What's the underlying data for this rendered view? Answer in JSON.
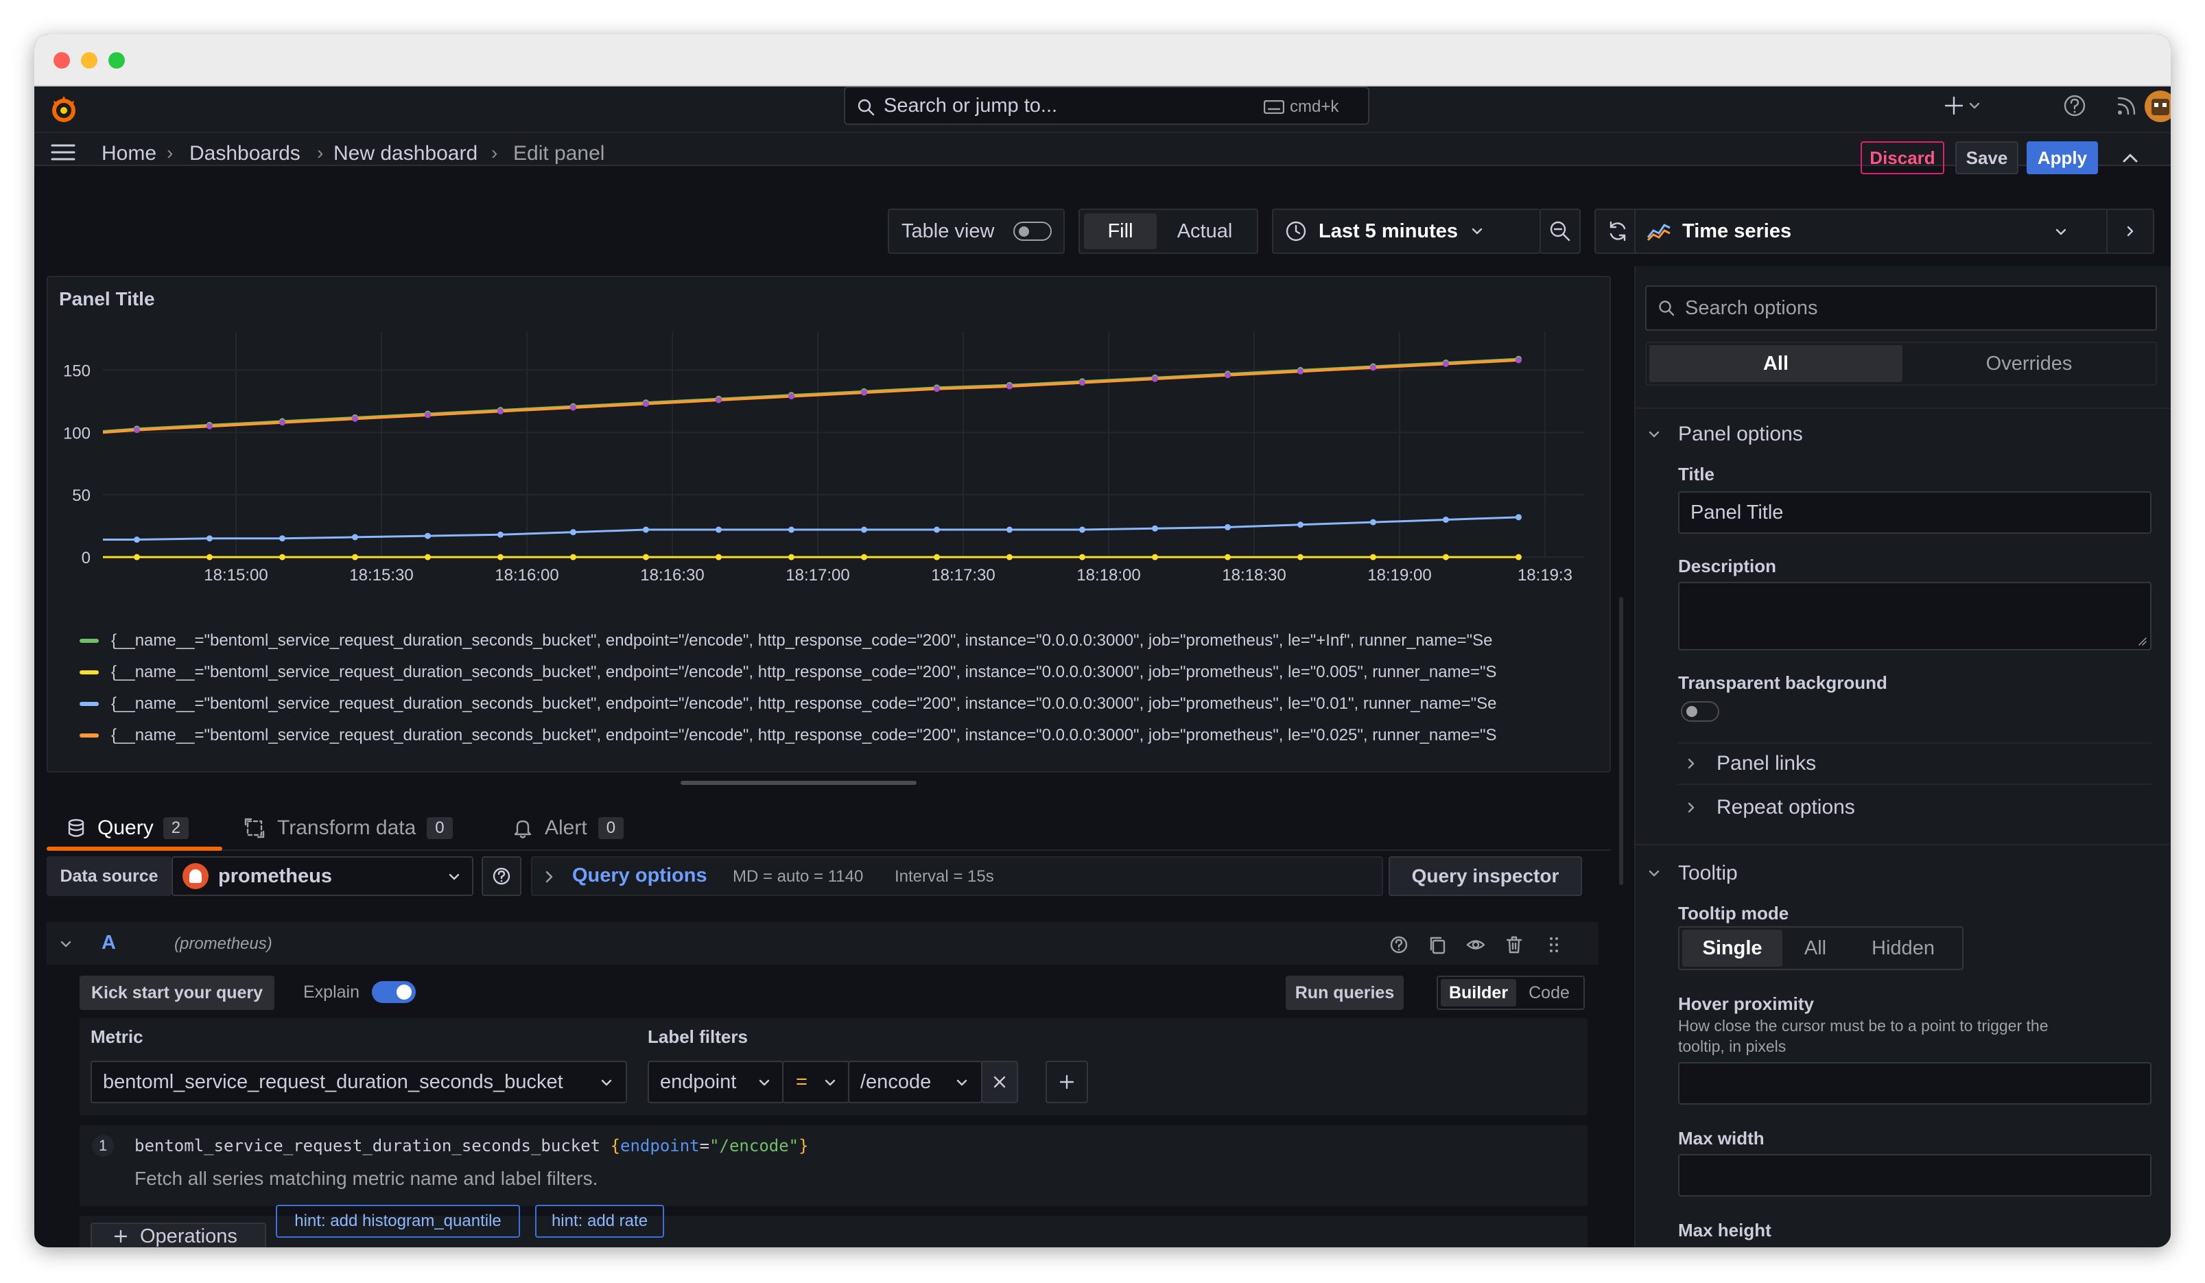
{
  "search": {
    "placeholder": "Search or jump to...",
    "shortcut": "cmd+k"
  },
  "breadcrumb": [
    "Home",
    "Dashboards",
    "New dashboard",
    "Edit panel"
  ],
  "header_actions": {
    "discard": "Discard",
    "save": "Save",
    "apply": "Apply"
  },
  "toolbar": {
    "table_view": "Table view",
    "fill": "Fill",
    "actual": "Actual",
    "time_range": "Last 5 minutes",
    "visualization": "Time series"
  },
  "panel": {
    "title": "Panel Title",
    "legend": [
      {
        "text": "{__name__=\"bentoml_service_request_duration_seconds_bucket\", endpoint=\"/encode\", http_response_code=\"200\", instance=\"0.0.0.0:3000\", job=\"prometheus\", le=\"+Inf\", runner_name=\"Se",
        "color": "#73bf69"
      },
      {
        "text": "{__name__=\"bentoml_service_request_duration_seconds_bucket\", endpoint=\"/encode\", http_response_code=\"200\", instance=\"0.0.0.0:3000\", job=\"prometheus\", le=\"0.005\", runner_name=\"S",
        "color": "#fade2a"
      },
      {
        "text": "{__name__=\"bentoml_service_request_duration_seconds_bucket\", endpoint=\"/encode\", http_response_code=\"200\", instance=\"0.0.0.0:3000\", job=\"prometheus\", le=\"0.01\", runner_name=\"Se",
        "color": "#8ab8ff"
      },
      {
        "text": "{__name__=\"bentoml_service_request_duration_seconds_bucket\", endpoint=\"/encode\", http_response_code=\"200\", instance=\"0.0.0.0:3000\", job=\"prometheus\", le=\"0.025\", runner_name=\"S",
        "color": "#ff9830"
      }
    ]
  },
  "chart_data": {
    "type": "line",
    "title": "Panel Title",
    "x_ticks": [
      "18:15:00",
      "18:15:30",
      "18:16:00",
      "18:16:30",
      "18:17:00",
      "18:17:30",
      "18:18:00",
      "18:18:30",
      "18:19:00",
      "18:19:3"
    ],
    "y_ticks": [
      "0",
      "50",
      "100",
      "150"
    ],
    "ylim": [
      0,
      175
    ],
    "grid": true,
    "legend_placement": "bottom",
    "x": [
      "18:14:45",
      "18:14:52",
      "18:15:07",
      "18:15:22",
      "18:15:37",
      "18:15:52",
      "18:16:07",
      "18:16:22",
      "18:16:37",
      "18:16:52",
      "18:17:07",
      "18:17:22",
      "18:17:37",
      "18:17:52",
      "18:18:07",
      "18:18:22",
      "18:18:37",
      "18:18:52",
      "18:19:07",
      "18:19:22",
      "18:19:37"
    ],
    "series": [
      {
        "color": "#73bf69",
        "values": [
          101,
          103,
          106,
          109,
          112,
          115,
          118,
          121,
          124,
          127,
          130,
          133,
          136,
          138,
          141,
          144,
          147,
          150,
          153,
          156,
          159
        ]
      },
      {
        "color": "#fade2a",
        "values": [
          0,
          0,
          0,
          0,
          0,
          0,
          0,
          0,
          0,
          0,
          0,
          0,
          0,
          0,
          0,
          0,
          0,
          0,
          0,
          0,
          0
        ]
      },
      {
        "color": "#8ab8ff",
        "values": [
          14,
          14,
          15,
          15,
          16,
          17,
          18,
          20,
          22,
          22,
          22,
          22,
          22,
          22,
          22,
          23,
          24,
          26,
          28,
          30,
          32
        ]
      },
      {
        "color": "#ff9830",
        "values": [
          100,
          102,
          105,
          108,
          111,
          114,
          117,
          120,
          123,
          126,
          129,
          132,
          135,
          137,
          140,
          143,
          146,
          149,
          152,
          155,
          158
        ]
      }
    ]
  },
  "query_tabs": [
    {
      "label": "Query",
      "count": "2"
    },
    {
      "label": "Transform data",
      "count": "0"
    },
    {
      "label": "Alert",
      "count": "0"
    }
  ],
  "query_bar": {
    "data_source_label": "Data source",
    "data_source": "prometheus",
    "query_options": "Query options",
    "md": "MD = auto = 1140",
    "interval": "Interval = 15s",
    "inspector": "Query inspector"
  },
  "query_a": {
    "ref": "A",
    "datasource": "(prometheus)",
    "kick_start": "Kick start your query",
    "explain": "Explain",
    "run_queries": "Run queries",
    "builder": "Builder",
    "code": "Code",
    "metric_label": "Metric",
    "metric": "bentoml_service_request_duration_seconds_bucket",
    "label_filters_label": "Label filters",
    "filter_key": "endpoint",
    "filter_op": "=",
    "filter_value": "/encode",
    "line_no": "1",
    "code_metric": "bentoml_service_request_duration_seconds_bucket",
    "code_open": " {",
    "code_key": "endpoint",
    "code_eq": "=",
    "code_val": "\"/encode\"",
    "code_close": "}",
    "explain_text": "Fetch all series matching metric name and label filters.",
    "operations": "Operations",
    "hint1": "hint: add histogram_quantile",
    "hint2": "hint: add rate"
  },
  "options": {
    "search_placeholder": "Search options",
    "tab_all": "All",
    "tab_overrides": "Overrides",
    "panel_options": "Panel options",
    "title_label": "Title",
    "title_value": "Panel Title",
    "description_label": "Description",
    "transparent_label": "Transparent background",
    "panel_links": "Panel links",
    "repeat_options": "Repeat options",
    "tooltip": "Tooltip",
    "tooltip_mode": "Tooltip mode",
    "mode_single": "Single",
    "mode_all": "All",
    "mode_hidden": "Hidden",
    "hover_proximity": "Hover proximity",
    "hover_desc_1": "How close the cursor must be to a point to trigger the",
    "hover_desc_2": "tooltip, in pixels",
    "max_width": "Max width",
    "max_height": "Max height"
  }
}
